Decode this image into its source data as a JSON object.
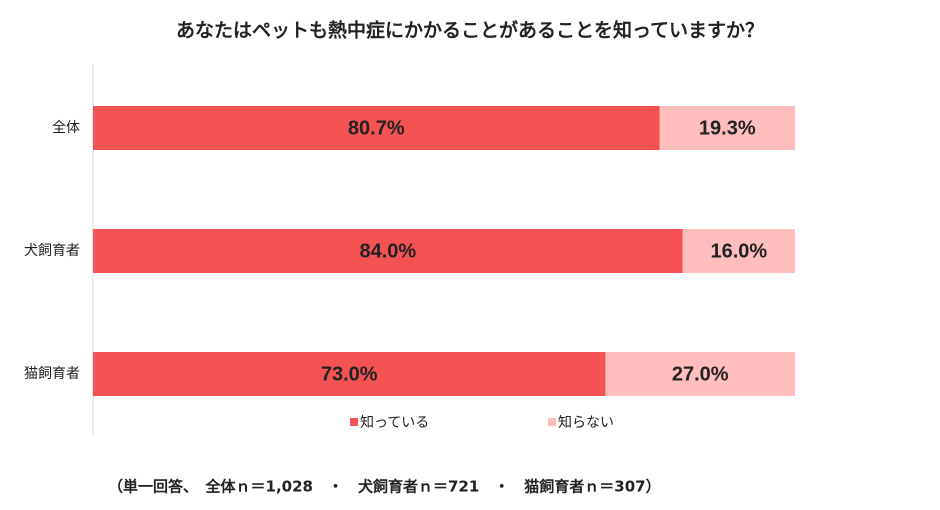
{
  "chart_data": {
    "type": "stacked-bar-horizontal",
    "title": "あなたはペットも熱中症にかかることがあることを知っていますか？",
    "categories": [
      "全体",
      "犬飼育者",
      "猫飼育者"
    ],
    "series": [
      {
        "name": "知っている",
        "color": "#f55353",
        "values": [
          80.7,
          84.0,
          73.0
        ],
        "value_labels": [
          "80.7%",
          "84.0%",
          "73.0%"
        ]
      },
      {
        "name": "知らない",
        "color": "#ffbdbd",
        "values": [
          19.3,
          16.0,
          27.0
        ],
        "value_labels": [
          "19.3%",
          "16.0%",
          "27.0%"
        ]
      }
    ],
    "xlim": [
      0,
      100
    ],
    "note": "（単一回答、　全体ｎ＝1,028　・　犬飼育者ｎ＝721　・　猫飼育者ｎ＝307）"
  }
}
